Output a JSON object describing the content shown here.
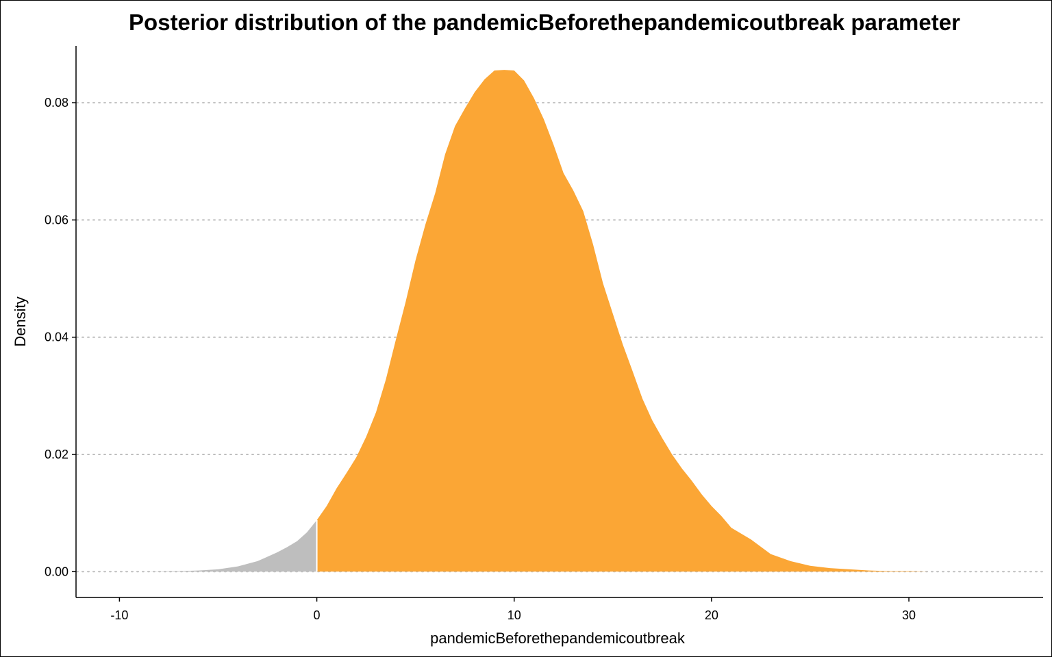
{
  "chart_data": {
    "type": "area",
    "title": "Posterior distribution of the pandemicBeforethepandemicoutbreak parameter",
    "xlabel": "pandemicBeforethepandemicoutbreak",
    "ylabel": "Density",
    "xlim": [
      -12.2,
      36.8
    ],
    "ylim": [
      -0.0044,
      0.0897
    ],
    "x_ticks": [
      -10,
      0,
      10,
      20,
      30
    ],
    "x_tick_labels": [
      "-10",
      "0",
      "10",
      "20",
      "30"
    ],
    "y_ticks": [
      0.0,
      0.02,
      0.04,
      0.06,
      0.08
    ],
    "y_tick_labels": [
      "0.00",
      "0.02",
      "0.04",
      "0.06",
      "0.08"
    ],
    "grid": "horizontal-dotted",
    "split_at": 0,
    "colors": {
      "below_split": "#bebebe",
      "above_split": "#fba635",
      "grid": "#bebebe",
      "axis": "#000000",
      "split_line": "#ffffff"
    },
    "density": {
      "x": [
        -8.8,
        -7,
        -6,
        -5,
        -4,
        -3,
        -2,
        -1.5,
        -1,
        -0.5,
        0,
        0.5,
        1,
        1.5,
        2,
        2.5,
        3,
        3.5,
        4,
        4.5,
        5,
        5.5,
        6,
        6.5,
        7,
        7.5,
        8,
        8.5,
        9,
        9.5,
        10,
        10.5,
        11,
        11.5,
        12,
        12.5,
        13,
        13.5,
        14,
        14.5,
        15,
        15.5,
        16,
        16.5,
        17,
        17.5,
        18,
        18.5,
        19,
        19.5,
        20,
        20.5,
        21,
        22,
        23,
        24,
        25,
        26,
        27,
        28,
        29,
        30,
        31,
        33.1
      ],
      "y": [
        0.0,
        0.0001,
        0.0002,
        0.0004,
        0.0009,
        0.0018,
        0.0033,
        0.0042,
        0.0052,
        0.0067,
        0.0088,
        0.0112,
        0.0142,
        0.0168,
        0.0195,
        0.023,
        0.0272,
        0.0328,
        0.0395,
        0.046,
        0.0531,
        0.0592,
        0.0646,
        0.0712,
        0.076,
        0.079,
        0.0818,
        0.084,
        0.0855,
        0.0856,
        0.0855,
        0.0838,
        0.0808,
        0.0772,
        0.0728,
        0.068,
        0.065,
        0.0615,
        0.0558,
        0.0492,
        0.044,
        0.0388,
        0.0342,
        0.0295,
        0.0258,
        0.0228,
        0.02,
        0.0176,
        0.0155,
        0.0132,
        0.0112,
        0.0095,
        0.0075,
        0.0055,
        0.003,
        0.0018,
        0.001,
        0.0006,
        0.0004,
        0.0002,
        0.0001,
        0.0001,
        0.0,
        0.0
      ]
    }
  }
}
